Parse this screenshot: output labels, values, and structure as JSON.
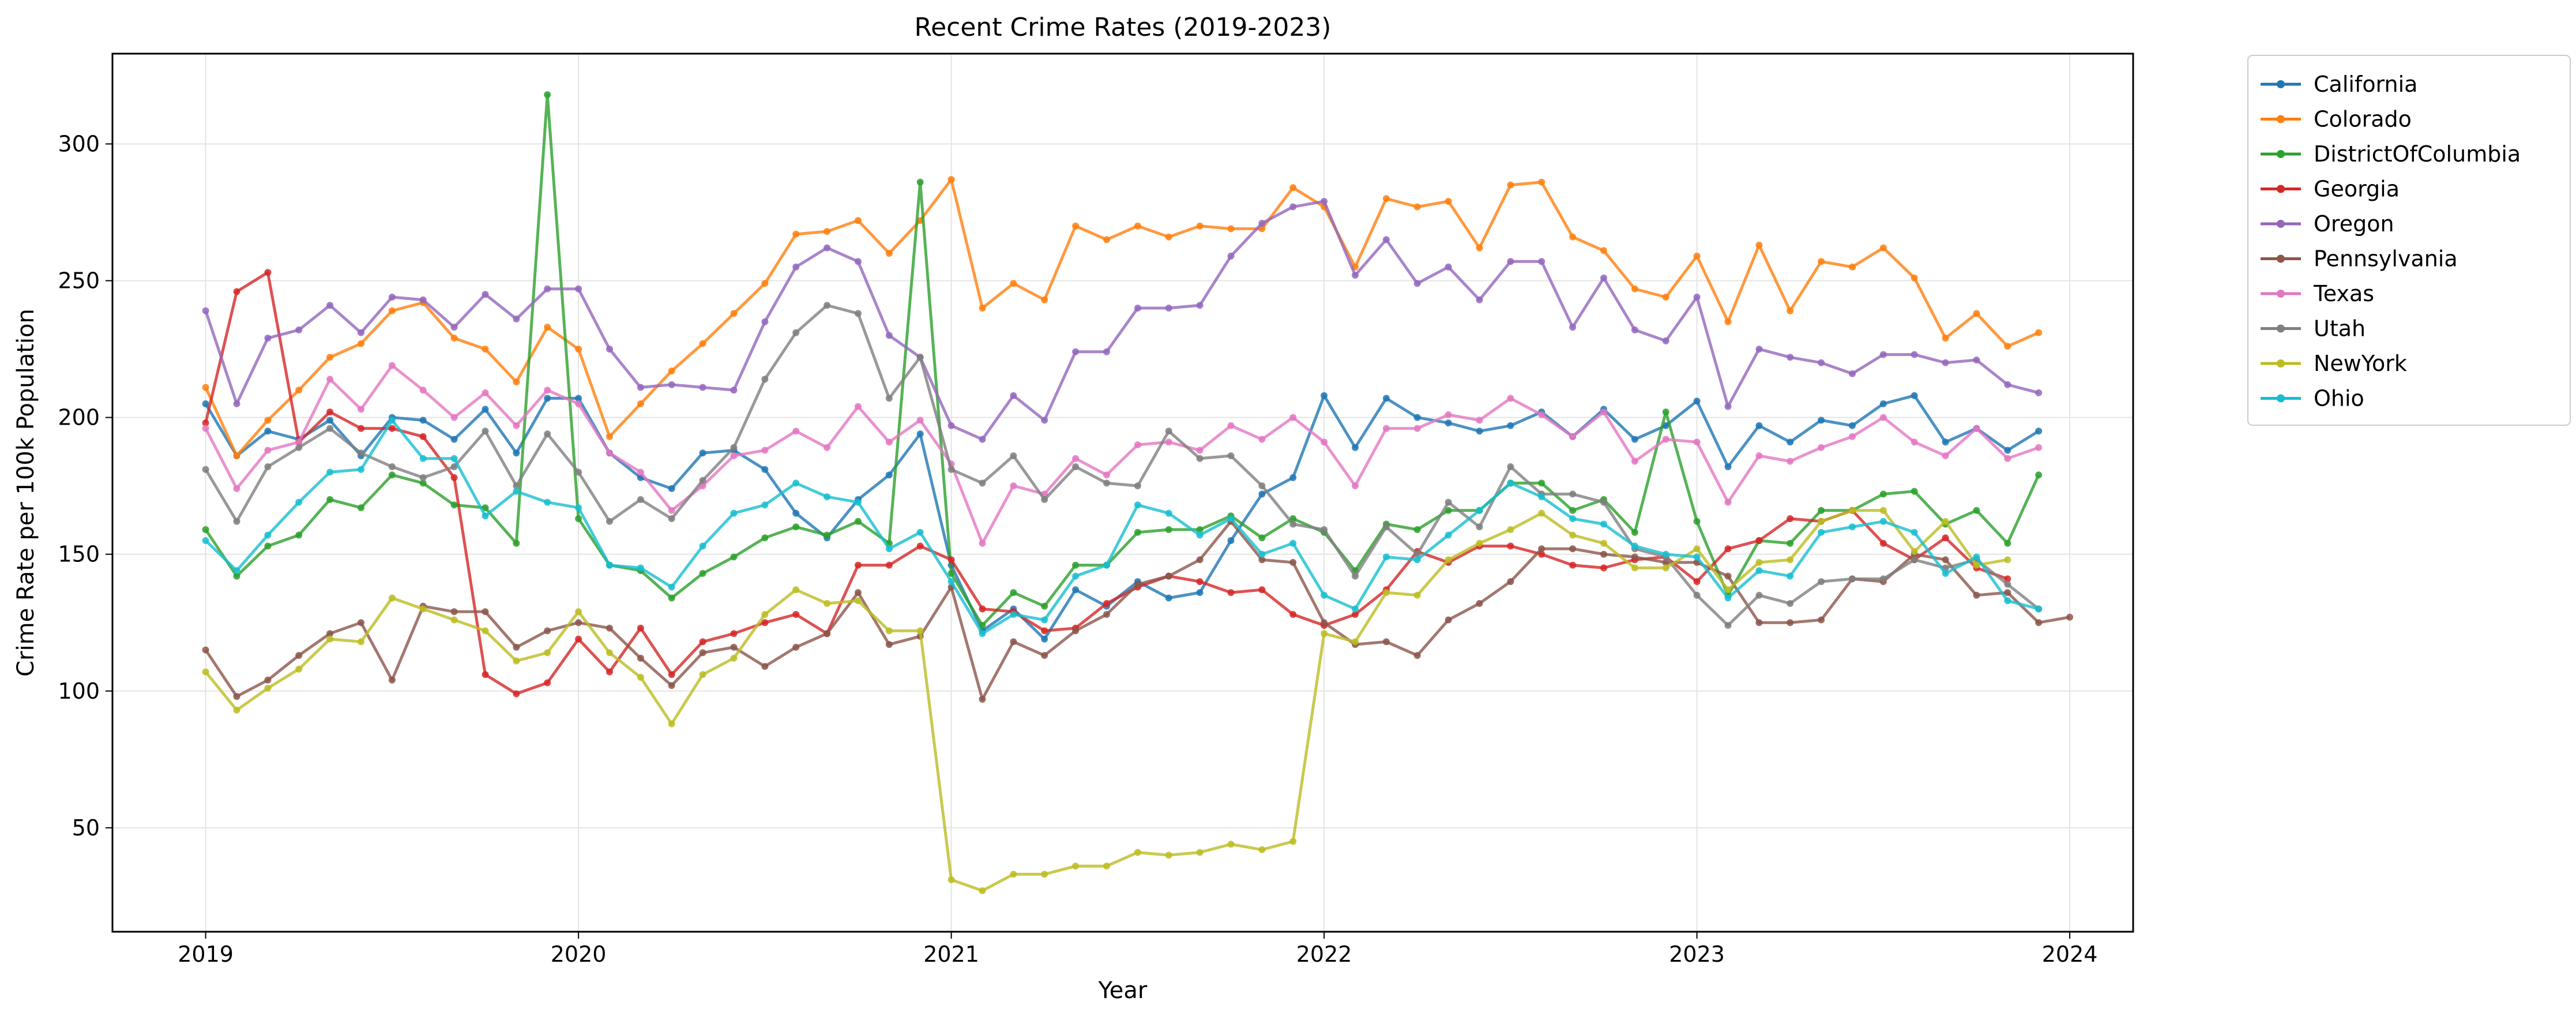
{
  "chart_data": {
    "type": "line",
    "title": "Recent Crime Rates (2019-2023)",
    "xlabel": "Year",
    "ylabel": "Crime Rate per 100k Population",
    "x_start": "2019-01",
    "x_step": "month",
    "x_ticks": [
      {
        "label": "2019",
        "x": 2019.0
      },
      {
        "label": "2020",
        "x": 2020.0
      },
      {
        "label": "2021",
        "x": 2021.0
      },
      {
        "label": "2022",
        "x": 2022.0
      },
      {
        "label": "2023",
        "x": 2023.0
      },
      {
        "label": "2024",
        "x": 2024.0
      }
    ],
    "xlim": [
      2018.75,
      2024.17
    ],
    "ylim": [
      12,
      333
    ],
    "y_ticks": [
      50,
      100,
      150,
      200,
      250,
      300
    ],
    "grid": true,
    "legend_position": "outside-top-right",
    "series": [
      {
        "name": "California",
        "color": "#1f77b4",
        "values": [
          205,
          186,
          195,
          192,
          199,
          186,
          200,
          199,
          192,
          203,
          187,
          207,
          207,
          187,
          178,
          174,
          187,
          188,
          181,
          165,
          156,
          170,
          179,
          194,
          146,
          122,
          130,
          119,
          137,
          131,
          140,
          134,
          136,
          155,
          172,
          178,
          208,
          189,
          207,
          200,
          198,
          195,
          197,
          202,
          193,
          203,
          192,
          197,
          206,
          182,
          197,
          191,
          199,
          197,
          205,
          208,
          191,
          196,
          188,
          195
        ]
      },
      {
        "name": "Colorado",
        "color": "#ff7f0e",
        "values": [
          211,
          186,
          199,
          210,
          222,
          227,
          239,
          242,
          229,
          225,
          213,
          233,
          225,
          193,
          205,
          217,
          227,
          238,
          249,
          267,
          268,
          272,
          260,
          272,
          287,
          240,
          249,
          243,
          270,
          265,
          270,
          266,
          270,
          269,
          269,
          284,
          277,
          255,
          280,
          277,
          279,
          262,
          285,
          286,
          266,
          261,
          247,
          244,
          259,
          235,
          263,
          239,
          257,
          255,
          262,
          251,
          229,
          238,
          226,
          231
        ]
      },
      {
        "name": "DistrictOfColumbia",
        "color": "#2ca02c",
        "values": [
          159,
          142,
          153,
          157,
          170,
          167,
          179,
          176,
          168,
          167,
          154,
          318,
          163,
          146,
          144,
          134,
          143,
          149,
          156,
          160,
          157,
          162,
          154,
          286,
          143,
          124,
          136,
          131,
          146,
          146,
          158,
          159,
          159,
          164,
          156,
          163,
          158,
          144,
          161,
          159,
          166,
          166,
          176,
          176,
          166,
          170,
          158,
          202,
          162,
          135,
          155,
          154,
          166,
          166,
          172,
          173,
          161,
          166,
          154,
          179
        ]
      },
      {
        "name": "Georgia",
        "color": "#d62728",
        "values": [
          198,
          246,
          253,
          191,
          202,
          196,
          196,
          193,
          178,
          106,
          99,
          103,
          119,
          107,
          123,
          106,
          118,
          121,
          125,
          128,
          121,
          146,
          146,
          153,
          148,
          130,
          129,
          122,
          123,
          132,
          138,
          142,
          140,
          136,
          137,
          128,
          124,
          128,
          137,
          151,
          147,
          153,
          153,
          150,
          146,
          145,
          148,
          149,
          140,
          152,
          155,
          163,
          162,
          166,
          154,
          148,
          156,
          145,
          141
        ]
      },
      {
        "name": "Oregon",
        "color": "#9467bd",
        "values": [
          239,
          205,
          229,
          232,
          241,
          231,
          244,
          243,
          233,
          245,
          236,
          247,
          247,
          225,
          211,
          212,
          211,
          210,
          235,
          255,
          262,
          257,
          230,
          222,
          197,
          192,
          208,
          199,
          224,
          224,
          240,
          240,
          241,
          259,
          271,
          277,
          279,
          252,
          265,
          249,
          255,
          243,
          257,
          257,
          233,
          251,
          232,
          228,
          244,
          204,
          225,
          222,
          220,
          216,
          223,
          223,
          220,
          221,
          212,
          209
        ]
      },
      {
        "name": "Pennsylvania",
        "color": "#8c564b",
        "values": [
          115,
          98,
          104,
          113,
          121,
          125,
          104,
          131,
          129,
          129,
          116,
          122,
          125,
          123,
          112,
          102,
          114,
          116,
          109,
          116,
          121,
          136,
          117,
          120,
          138,
          97,
          118,
          113,
          122,
          128,
          139,
          142,
          148,
          162,
          148,
          147,
          125,
          117,
          118,
          113,
          126,
          132,
          140,
          152,
          152,
          150,
          149,
          147,
          147,
          142,
          125,
          125,
          126,
          141,
          140,
          150,
          148,
          135,
          136,
          125,
          127
        ]
      },
      {
        "name": "Texas",
        "color": "#e377c2",
        "values": [
          196,
          174,
          188,
          191,
          214,
          203,
          219,
          210,
          200,
          209,
          197,
          210,
          205,
          187,
          180,
          166,
          175,
          186,
          188,
          195,
          189,
          204,
          191,
          199,
          183,
          154,
          175,
          172,
          185,
          179,
          190,
          191,
          188,
          197,
          192,
          200,
          191,
          175,
          196,
          196,
          201,
          199,
          207,
          201,
          193,
          202,
          184,
          192,
          191,
          169,
          186,
          184,
          189,
          193,
          200,
          191,
          186,
          196,
          185,
          189
        ]
      },
      {
        "name": "Utah",
        "color": "#7f7f7f",
        "values": [
          181,
          162,
          182,
          189,
          196,
          187,
          182,
          178,
          182,
          195,
          175,
          194,
          180,
          162,
          170,
          163,
          177,
          189,
          214,
          231,
          241,
          238,
          207,
          222,
          181,
          176,
          186,
          170,
          182,
          176,
          175,
          195,
          185,
          186,
          175,
          161,
          159,
          142,
          160,
          150,
          169,
          160,
          182,
          172,
          172,
          169,
          152,
          149,
          135,
          124,
          135,
          132,
          140,
          141,
          141,
          148,
          145,
          148,
          139,
          130
        ]
      },
      {
        "name": "NewYork",
        "color": "#bcbd22",
        "values": [
          107,
          93,
          101,
          108,
          119,
          118,
          134,
          130,
          126,
          122,
          111,
          114,
          129,
          114,
          105,
          88,
          106,
          112,
          128,
          137,
          132,
          133,
          122,
          122,
          31,
          27,
          33,
          33,
          36,
          36,
          41,
          40,
          41,
          44,
          42,
          45,
          121,
          118,
          136,
          135,
          148,
          154,
          159,
          165,
          157,
          154,
          145,
          145,
          152,
          137,
          147,
          148,
          162,
          166,
          166,
          151,
          162,
          146,
          148
        ]
      },
      {
        "name": "Ohio",
        "color": "#17becf",
        "values": [
          155,
          144,
          157,
          169,
          180,
          181,
          199,
          185,
          185,
          164,
          173,
          169,
          167,
          146,
          145,
          138,
          153,
          165,
          168,
          176,
          171,
          169,
          152,
          158,
          140,
          121,
          128,
          126,
          142,
          146,
          168,
          165,
          157,
          163,
          150,
          154,
          135,
          130,
          149,
          148,
          157,
          166,
          176,
          171,
          163,
          161,
          153,
          150,
          149,
          134,
          144,
          142,
          158,
          160,
          162,
          158,
          143,
          149,
          133,
          130
        ]
      }
    ]
  }
}
